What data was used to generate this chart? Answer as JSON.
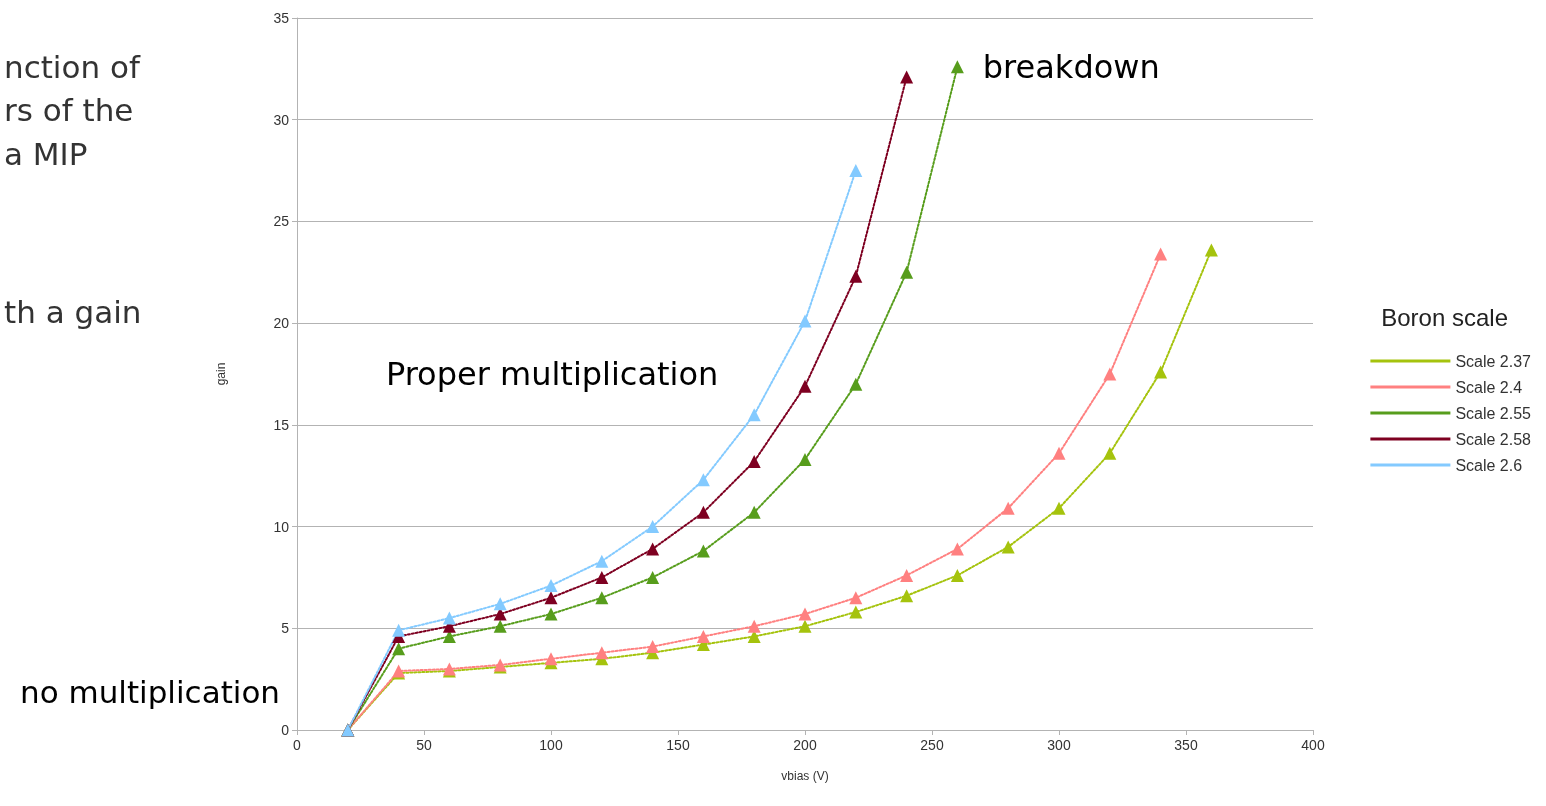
{
  "chart_data": {
    "type": "line",
    "xlabel": "vbias (V)",
    "ylabel": "gain",
    "legend_title": "Boron scale",
    "legend": "right",
    "grid": "y",
    "marker": "triangle",
    "line_style": "dotted",
    "xlim": [
      0,
      400
    ],
    "xticks": [
      0,
      50,
      100,
      150,
      200,
      250,
      300,
      350,
      400
    ],
    "ylim": [
      0,
      35
    ],
    "yticks": [
      0,
      5,
      10,
      15,
      20,
      25,
      30,
      35
    ],
    "annotations": [
      "breakdown",
      "Proper multiplication",
      "no multiplication",
      "nction of",
      "rs of the",
      "a MIP",
      "th a gain"
    ],
    "series": [
      {
        "name": "Scale 2.37",
        "color": "#a5c30d",
        "x": [
          20,
          40,
          60,
          80,
          100,
          120,
          140,
          160,
          180,
          200,
          220,
          240,
          260,
          280,
          300,
          320,
          340,
          360
        ],
        "values": [
          0,
          2.8,
          2.9,
          3.1,
          3.3,
          3.5,
          3.8,
          4.2,
          4.6,
          5.1,
          5.8,
          6.6,
          7.6,
          9.0,
          10.9,
          13.6,
          17.6,
          23.6
        ]
      },
      {
        "name": "Scale 2.4",
        "color": "#ff8080",
        "x": [
          20,
          40,
          60,
          80,
          100,
          120,
          140,
          160,
          180,
          200,
          220,
          240,
          260,
          280,
          300,
          320,
          340
        ],
        "values": [
          0,
          2.9,
          3.0,
          3.2,
          3.5,
          3.8,
          4.1,
          4.6,
          5.1,
          5.7,
          6.5,
          7.6,
          8.9,
          10.9,
          13.6,
          17.5,
          23.4
        ]
      },
      {
        "name": "Scale 2.55",
        "color": "#579d1c",
        "x": [
          20,
          40,
          60,
          80,
          100,
          120,
          140,
          160,
          180,
          200,
          220,
          240,
          260
        ],
        "values": [
          0,
          4.0,
          4.6,
          5.1,
          5.7,
          6.5,
          7.5,
          8.8,
          10.7,
          13.3,
          17.0,
          22.5,
          32.6
        ]
      },
      {
        "name": "Scale 2.58",
        "color": "#7e0021",
        "x": [
          20,
          40,
          60,
          80,
          100,
          120,
          140,
          160,
          180,
          200,
          220,
          240
        ],
        "values": [
          0,
          4.6,
          5.1,
          5.7,
          6.5,
          7.5,
          8.9,
          10.7,
          13.2,
          16.9,
          22.3,
          32.1
        ]
      },
      {
        "name": "Scale 2.6",
        "color": "#83caff",
        "x": [
          20,
          40,
          60,
          80,
          100,
          120,
          140,
          160,
          180,
          200,
          220
        ],
        "values": [
          0,
          4.9,
          5.5,
          6.2,
          7.1,
          8.3,
          10.0,
          12.3,
          15.5,
          20.1,
          27.5
        ]
      }
    ]
  }
}
